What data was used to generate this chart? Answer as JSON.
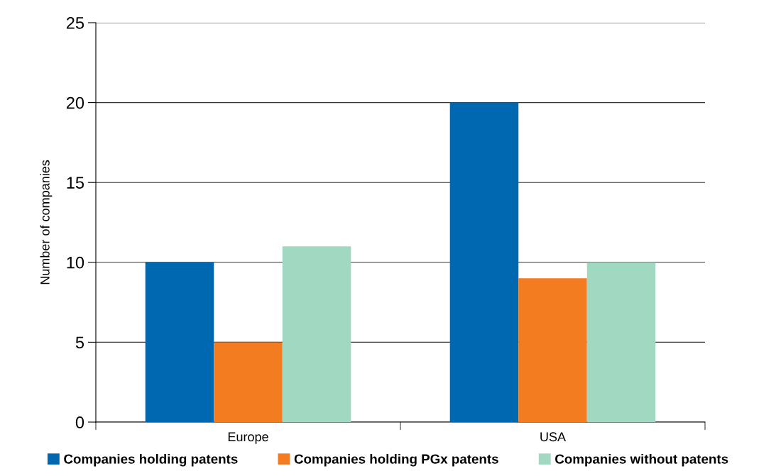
{
  "chart_data": {
    "type": "bar",
    "ylabel": "Number of companies",
    "categories": [
      "Europe",
      "USA"
    ],
    "series": [
      {
        "name": "Companies holding patents",
        "color": "#0067b1",
        "values": [
          10,
          20
        ]
      },
      {
        "name": "Companies holding PGx patents",
        "color": "#f37b20",
        "values": [
          5,
          9
        ]
      },
      {
        "name": "Companies without patents",
        "color": "#a0d8c2",
        "values": [
          11,
          10
        ]
      }
    ],
    "ylim": [
      0,
      25
    ],
    "yticks": [
      0,
      5,
      10,
      15,
      20,
      25
    ],
    "grid": "y",
    "legend": "bottom"
  }
}
